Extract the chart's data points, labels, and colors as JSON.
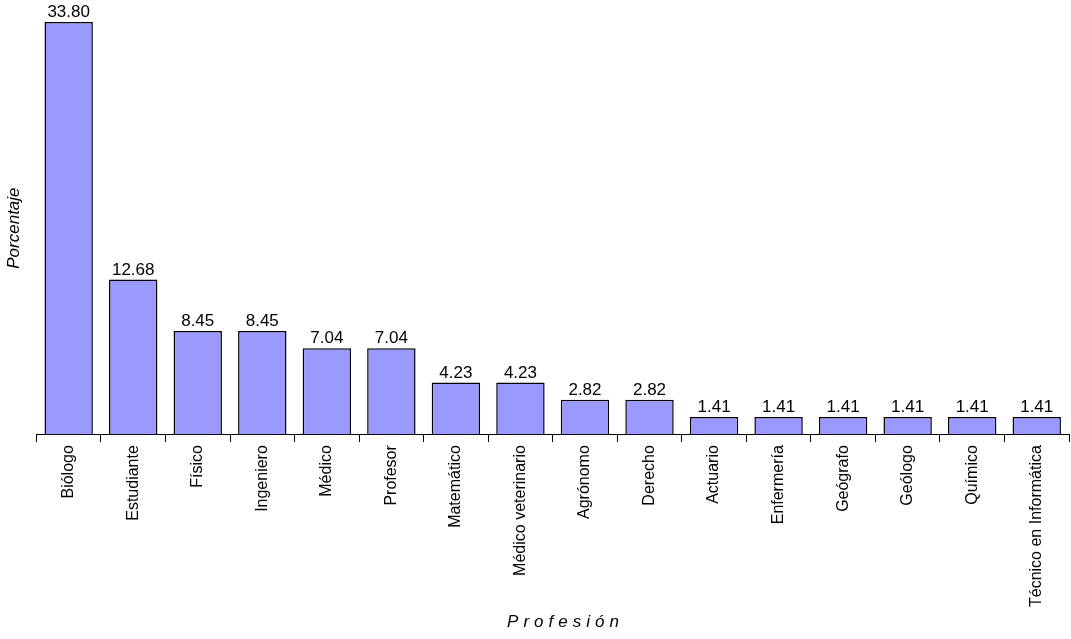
{
  "chart_data": {
    "type": "bar",
    "xlabel": "Profesión",
    "ylabel": "Porcentaje",
    "categories": [
      "Biólogo",
      "Estudiante",
      "Físico",
      "Ingeniero",
      "Médico",
      "Profesor",
      "Matemático",
      "Médico veterinario",
      "Agrónomo",
      "Derecho",
      "Actuario",
      "Enfermería",
      "Geógrafo",
      "Geólogo",
      "Químico",
      "Técnico en Informática"
    ],
    "values": [
      33.8,
      12.68,
      8.45,
      8.45,
      7.04,
      7.04,
      4.23,
      4.23,
      2.82,
      2.82,
      1.41,
      1.41,
      1.41,
      1.41,
      1.41,
      1.41
    ],
    "value_labels": [
      "33.80",
      "12.68",
      "8.45",
      "8.45",
      "7.04",
      "7.04",
      "4.23",
      "4.23",
      "2.82",
      "2.82",
      "1.41",
      "1.41",
      "1.41",
      "1.41",
      "1.41",
      "1.41"
    ],
    "color": "#9999ff",
    "grid": false,
    "legend": false
  }
}
